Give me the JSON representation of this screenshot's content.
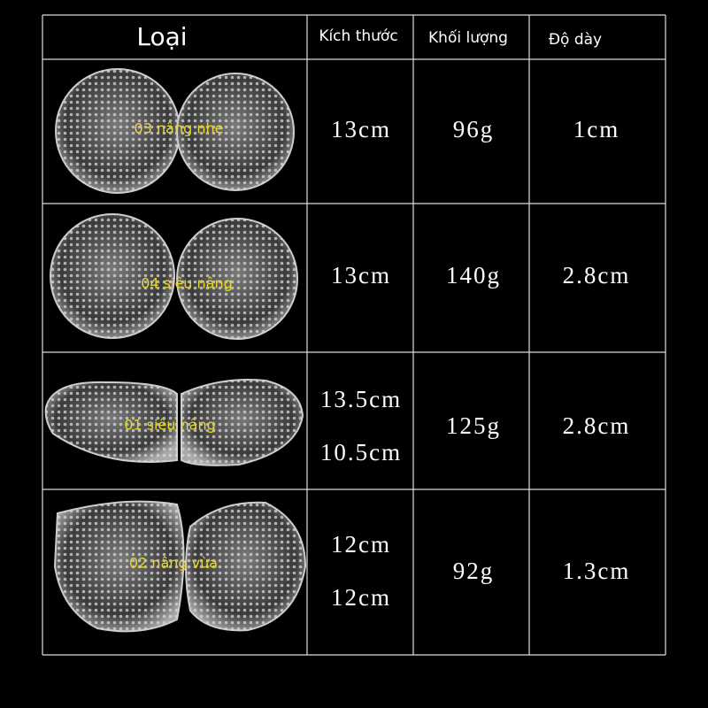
{
  "table": {
    "header": [
      "Loại",
      "Kích thước",
      "Khối lượng",
      "Độ dày"
    ],
    "rows": [
      {
        "label": "03 nâng nhẹ",
        "size": [
          "13cm"
        ],
        "weight": "96g",
        "thickness": "1cm"
      },
      {
        "label": "04 siêu nâng",
        "size": [
          "13cm"
        ],
        "weight": "140g",
        "thickness": "2.8cm"
      },
      {
        "label": "01 siêu nâng",
        "size": [
          "13.5cm",
          "10.5cm"
        ],
        "weight": "125g",
        "thickness": "2.8cm"
      },
      {
        "label": "02 nâng vừa",
        "size": [
          "12cm",
          "12cm"
        ],
        "weight": "92g",
        "thickness": "1.3cm"
      }
    ]
  }
}
